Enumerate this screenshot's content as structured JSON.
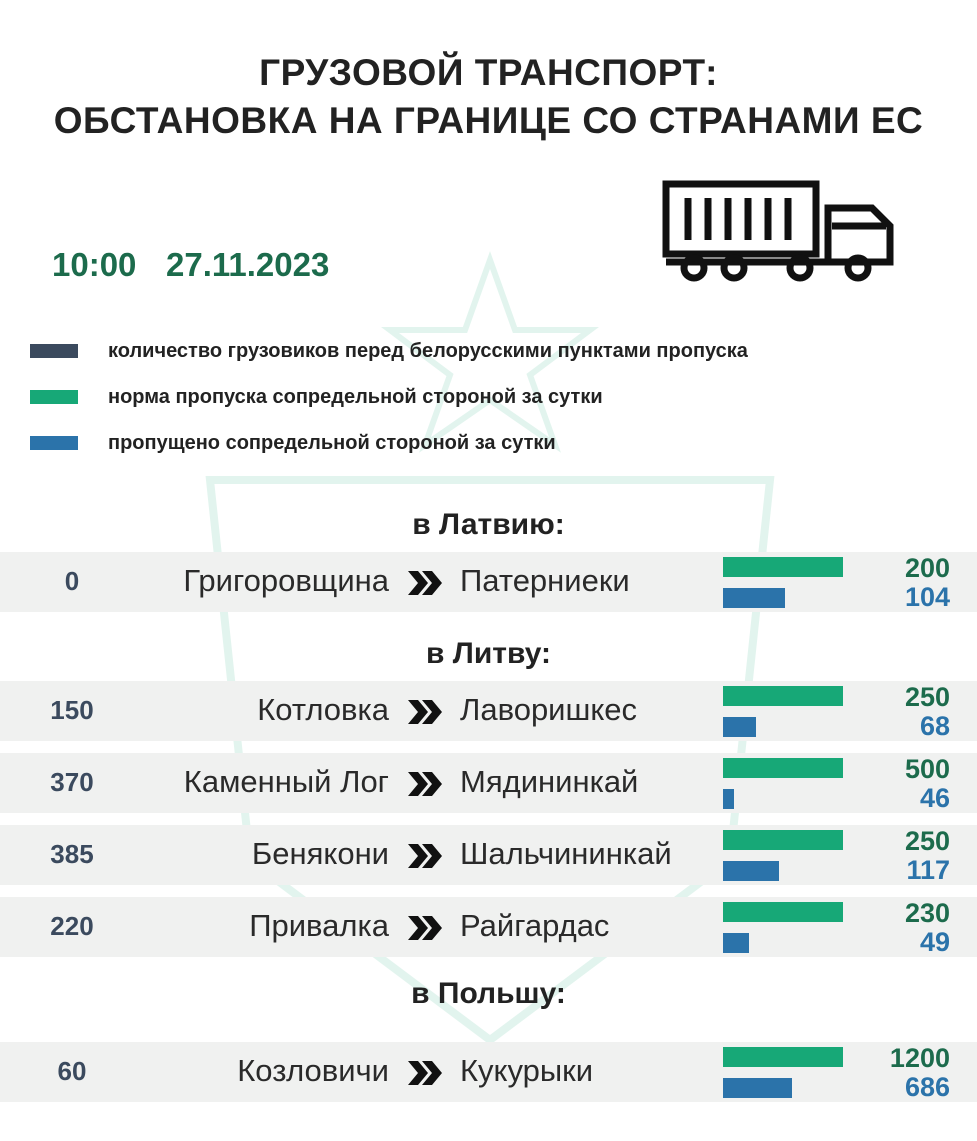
{
  "header": {
    "title_lines": [
      "ГРУЗОВОЙ ТРАНСПОРТ:",
      "ОБСТАНОВКА НА ГРАНИЦЕ СО СТРАНАМИ ЕС"
    ],
    "time": "10:00",
    "date": "27.11.2023"
  },
  "legend": [
    {
      "label": "количество грузовиков перед белорусскими пунктами пропуска",
      "color": "#3b4a5e"
    },
    {
      "label": "норма пропуска сопредельной стороной за сутки",
      "color": "#17a877"
    },
    {
      "label": "пропущено сопредельной стороной за сутки",
      "color": "#2b73aa"
    }
  ],
  "sections": [
    {
      "heading": "в Латвию:",
      "rows": [
        {
          "count": 0,
          "from": "Григоровщина",
          "to": "Патерниеки",
          "norm": 200,
          "passed": 104
        }
      ]
    },
    {
      "heading": "в Литву:",
      "rows": [
        {
          "count": 150,
          "from": "Котловка",
          "to": "Лаворишкес",
          "norm": 250,
          "passed": 68
        },
        {
          "count": 370,
          "from": "Каменный Лог",
          "to": "Мядининкай",
          "norm": 500,
          "passed": 46
        },
        {
          "count": 385,
          "from": "Бенякони",
          "to": "Шальчининкай",
          "norm": 250,
          "passed": 117
        },
        {
          "count": 220,
          "from": "Привалка",
          "to": "Райгардас",
          "norm": 230,
          "passed": 49
        }
      ]
    },
    {
      "heading": "в Польшу:",
      "rows": [
        {
          "count": 60,
          "from": "Козловичи",
          "to": "Кукурыки",
          "norm": 1200,
          "passed": 686
        }
      ]
    }
  ]
}
